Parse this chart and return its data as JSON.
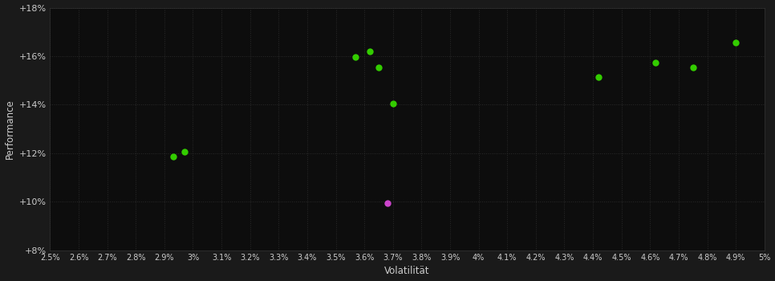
{
  "background_color": "#1a1a1a",
  "plot_bg_color": "#0d0d0d",
  "grid_color": "#2a2a2a",
  "text_color": "#cccccc",
  "xlabel": "Volatilität",
  "ylabel": "Performance",
  "xlim": [
    0.025,
    0.05
  ],
  "ylim": [
    0.08,
    0.18
  ],
  "green_points": [
    [
      0.0293,
      0.1185
    ],
    [
      0.0297,
      0.1205
    ],
    [
      0.0357,
      0.1595
    ],
    [
      0.0362,
      0.162
    ],
    [
      0.0365,
      0.1555
    ],
    [
      0.037,
      0.1405
    ],
    [
      0.0442,
      0.1515
    ],
    [
      0.0462,
      0.1575
    ],
    [
      0.0475,
      0.1555
    ],
    [
      0.049,
      0.1655
    ]
  ],
  "magenta_points": [
    [
      0.0368,
      0.0995
    ]
  ],
  "green_color": "#33cc00",
  "magenta_color": "#cc44cc",
  "marker_size": 6,
  "xticks": [
    0.025,
    0.026,
    0.027,
    0.028,
    0.029,
    0.03,
    0.031,
    0.032,
    0.033,
    0.034,
    0.035,
    0.036,
    0.037,
    0.038,
    0.039,
    0.04,
    0.041,
    0.042,
    0.043,
    0.044,
    0.045,
    0.046,
    0.047,
    0.048,
    0.049,
    0.05
  ],
  "xlabels": [
    "2.5%",
    "2.6%",
    "2.7%",
    "2.8%",
    "2.9%",
    "3%",
    "3.1%",
    "3.2%",
    "3.3%",
    "3.4%",
    "3.5%",
    "3.6%",
    "3.7%",
    "3.8%",
    "3.9%",
    "4%",
    "4.1%",
    "4.2%",
    "4.3%",
    "4.4%",
    "4.5%",
    "4.6%",
    "4.7%",
    "4.8%",
    "4.9%",
    "5%"
  ],
  "yticks": [
    0.08,
    0.1,
    0.12,
    0.14,
    0.16,
    0.18
  ],
  "ylabels": [
    "+8%",
    "+10%",
    "+12%",
    "+14%",
    "+16%",
    "+18%"
  ]
}
